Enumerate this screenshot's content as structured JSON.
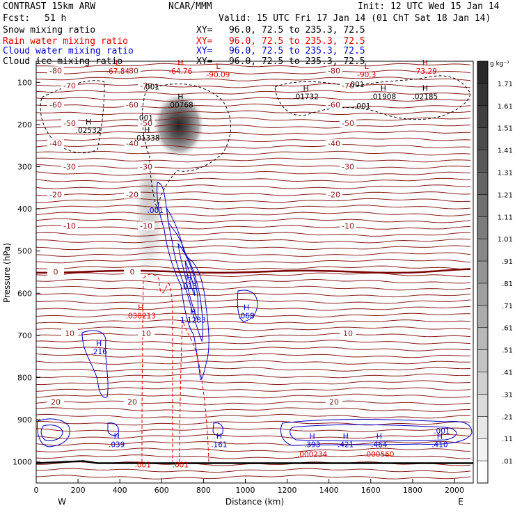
{
  "header": {
    "model": "CONTRAST 15km ARW",
    "org": "NCAR/MMM",
    "init": "Init: 12 UTC Wed 15 Jan 14",
    "fcst_label": "Fcst:",
    "fcst_value": "51 h",
    "valid": "Valid: 15 UTC Fri 17 Jan 14 (01 ChT Sat 18 Jan 14)"
  },
  "fields": [
    {
      "name": "Snow mixing ratio",
      "xy": "XY=   96.0, 72.5 to 235.3, 72.5",
      "color": "#000000"
    },
    {
      "name": "Rain water mixing ratio",
      "xy": "XY=   96.0, 72.5 to 235.3, 72.5",
      "color": "#e00000"
    },
    {
      "name": "Cloud water mixing ratio",
      "xy": "XY=   96.0, 72.5 to 235.3, 72.5",
      "color": "#0000cc"
    },
    {
      "name": "Cloud ice mixing ratio",
      "xy": "XY=   96.0, 72.5 to 235.3, 72.5",
      "color": "#000000"
    }
  ],
  "colorbar": {
    "unit": "g kg⁻¹",
    "labels": [
      "1.71",
      "1.61",
      "1.51",
      "1.41",
      "1.31",
      "1.21",
      "1.11",
      "1.01",
      ".91",
      ".81",
      ".71",
      ".61",
      ".51",
      ".41",
      ".31",
      ".21",
      ".11",
      ".01"
    ]
  },
  "chart_data": {
    "type": "contour cross-section",
    "xlabel": "Distance (km)",
    "ylabel": "Pressure (hPa)",
    "xlim": [
      0,
      2090
    ],
    "ylim": [
      1050,
      50
    ],
    "x_ticks": [
      0,
      200,
      400,
      600,
      800,
      1000,
      1200,
      1400,
      1600,
      1800,
      2000
    ],
    "y_ticks": [
      100,
      200,
      300,
      400,
      500,
      600,
      700,
      800,
      900,
      1000
    ],
    "x_end_labels": {
      "left": "W",
      "right": "E"
    },
    "isotherms": [
      {
        "label": "-80",
        "p": 72
      },
      {
        "label": "-70",
        "p": 108
      },
      {
        "label": "-60",
        "p": 153
      },
      {
        "label": "-50",
        "p": 197
      },
      {
        "label": "-40",
        "p": 245
      },
      {
        "label": "-30",
        "p": 300
      },
      {
        "label": "-20",
        "p": 366
      },
      {
        "label": "-10",
        "p": 440
      },
      {
        "label": "0",
        "p": 549
      },
      {
        "label": "10",
        "p": 695
      },
      {
        "label": "20",
        "p": 858
      }
    ],
    "extrema_labels": [
      {
        "kind": "L",
        "value": "-67.84",
        "x": 390,
        "p": 70,
        "color": "#e00000"
      },
      {
        "kind": "H",
        "value": "-64.76",
        "x": 690,
        "p": 70,
        "color": "#e00000"
      },
      {
        "kind": "L",
        "value": "-90.09",
        "x": 870,
        "p": 78,
        "color": "#e00000"
      },
      {
        "kind": "L",
        "value": "-90.3",
        "x": 1580,
        "p": 78,
        "color": "#e00000"
      },
      {
        "kind": "H",
        "value": "-73.29",
        "x": 1860,
        "p": 70,
        "color": "#e00000"
      },
      {
        "kind": "",
        "value": ".001",
        "x": 550,
        "p": 107,
        "color": "#000000"
      },
      {
        "kind": "",
        "value": ".001",
        "x": 1530,
        "p": 101,
        "color": "#000000"
      },
      {
        "kind": "H",
        "value": ".00768",
        "x": 690,
        "p": 150,
        "color": "#000000"
      },
      {
        "kind": "H",
        "value": ".01732",
        "x": 1290,
        "p": 130,
        "color": "#000000"
      },
      {
        "kind": "H",
        "value": ".01908",
        "x": 1660,
        "p": 130,
        "color": "#000000"
      },
      {
        "kind": "H",
        "value": ".02185",
        "x": 1860,
        "p": 130,
        "color": "#000000"
      },
      {
        "kind": "",
        "value": ".001",
        "x": 1560,
        "p": 152,
        "color": "#000000"
      },
      {
        "kind": "",
        "value": ".001",
        "x": 520,
        "p": 180,
        "color": "#000000"
      },
      {
        "kind": "H",
        "value": ".02532",
        "x": 250,
        "p": 210,
        "color": "#000000"
      },
      {
        "kind": "H",
        "value": ".01338",
        "x": 530,
        "p": 228,
        "color": "#000000"
      },
      {
        "kind": "",
        "value": ".001",
        "x": 570,
        "p": 400,
        "color": "#0000cc"
      },
      {
        "kind": "H",
        "value": ".013",
        "x": 730,
        "p": 580,
        "color": "#0000cc"
      },
      {
        "kind": "H",
        "value": ".038213",
        "x": 500,
        "p": 650,
        "color": "#e00000"
      },
      {
        "kind": "H",
        "value": "1.1283",
        "x": 750,
        "p": 660,
        "color": "#0000cc"
      },
      {
        "kind": "H",
        "value": ".068",
        "x": 1005,
        "p": 650,
        "color": "#0000cc"
      },
      {
        "kind": "H",
        "value": ".216",
        "x": 300,
        "p": 735,
        "color": "#0000cc"
      },
      {
        "kind": "H",
        "value": ".039",
        "x": 385,
        "p": 955,
        "color": "#0000cc"
      },
      {
        "kind": "H",
        "value": ".161",
        "x": 875,
        "p": 955,
        "color": "#0000cc"
      },
      {
        "kind": "H",
        "value": ".393",
        "x": 1320,
        "p": 955,
        "color": "#0000cc"
      },
      {
        "kind": "",
        "value": ".000234",
        "x": 1320,
        "p": 978,
        "color": "#e00000"
      },
      {
        "kind": "H",
        "value": ".421",
        "x": 1480,
        "p": 955,
        "color": "#0000cc"
      },
      {
        "kind": "H",
        "value": ".464",
        "x": 1640,
        "p": 955,
        "color": "#0000cc"
      },
      {
        "kind": "",
        "value": ".000560",
        "x": 1640,
        "p": 978,
        "color": "#e00000"
      },
      {
        "kind": "H",
        "value": ".410",
        "x": 1930,
        "p": 955,
        "color": "#0000cc"
      },
      {
        "kind": "",
        "value": ".001",
        "x": 1940,
        "p": 923,
        "color": "#0000cc"
      },
      {
        "kind": "",
        "value": ".001",
        "x": 510,
        "p": 1003,
        "color": "#e00000"
      },
      {
        "kind": "",
        "value": ".001",
        "x": 690,
        "p": 1003,
        "color": "#e00000"
      }
    ]
  }
}
